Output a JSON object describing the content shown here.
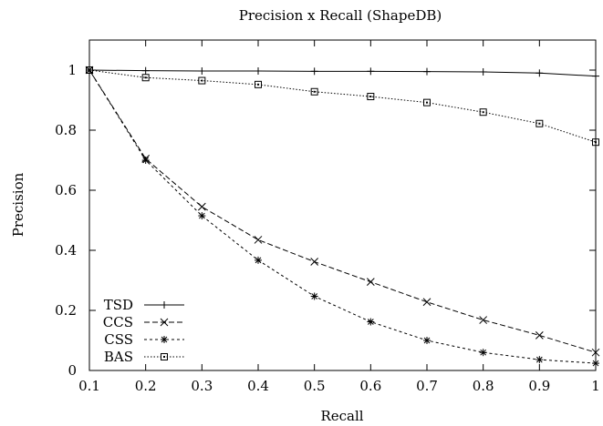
{
  "chart_data": {
    "type": "line",
    "title": "Precision x Recall (ShapeDB)",
    "xlabel": "Recall",
    "ylabel": "Precision",
    "xlim": [
      0.1,
      1.0
    ],
    "ylim": [
      0,
      1.1
    ],
    "x": [
      0.1,
      0.2,
      0.3,
      0.4,
      0.5,
      0.6,
      0.7,
      0.8,
      0.9,
      1.0
    ],
    "xticks": [
      "0.1",
      "0.2",
      "0.3",
      "0.4",
      "0.5",
      "0.6",
      "0.7",
      "0.8",
      "0.9",
      "1"
    ],
    "yticks": [
      "0",
      "0.2",
      "0.4",
      "0.6",
      "0.8",
      "1"
    ],
    "grid": false,
    "legend_position": "bottom-left",
    "series": [
      {
        "name": "TSD",
        "marker": "plus",
        "dash": "solid",
        "values": [
          1.0,
          0.998,
          0.997,
          0.997,
          0.996,
          0.996,
          0.995,
          0.994,
          0.99,
          0.98
        ]
      },
      {
        "name": "CCS",
        "marker": "cross",
        "dash": "dashed",
        "values": [
          1.0,
          0.705,
          0.545,
          0.435,
          0.362,
          0.295,
          0.228,
          0.168,
          0.117,
          0.06
        ]
      },
      {
        "name": "CSS",
        "marker": "star",
        "dash": "dotted-dashed",
        "values": [
          1.0,
          0.7,
          0.515,
          0.367,
          0.247,
          0.162,
          0.1,
          0.06,
          0.036,
          0.024
        ]
      },
      {
        "name": "BAS",
        "marker": "square",
        "dash": "dotted",
        "values": [
          1.0,
          0.975,
          0.965,
          0.952,
          0.928,
          0.912,
          0.892,
          0.86,
          0.822,
          0.76
        ]
      }
    ]
  }
}
